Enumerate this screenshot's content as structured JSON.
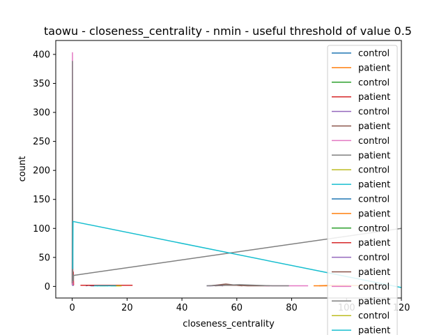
{
  "chart_data": {
    "type": "line",
    "title": "taowu - closeness_centrality - nmin - useful threshold of value 0.5",
    "xlabel": "closeness_centrality",
    "ylabel": "count",
    "xlim": [
      -6,
      120
    ],
    "ylim": [
      -20,
      424
    ],
    "xticks": [
      0,
      20,
      40,
      60,
      80,
      100,
      120
    ],
    "yticks": [
      0,
      50,
      100,
      150,
      200,
      250,
      300,
      350,
      400
    ],
    "xtick_labels": [
      "0",
      "20",
      "40",
      "60",
      "80",
      "100",
      "120"
    ],
    "ytick_labels": [
      "0",
      "50",
      "100",
      "150",
      "200",
      "250",
      "300",
      "350",
      "400"
    ],
    "grid": false,
    "legend_position": "right",
    "series": [
      {
        "name": "control",
        "color": "#1f77b4",
        "x": [
          0,
          0.1,
          0.2,
          0.3,
          0.4
        ],
        "y": [
          3,
          6,
          4,
          2,
          1
        ]
      },
      {
        "name": "patient",
        "color": "#ff7f0e",
        "x": [
          90,
          95,
          100,
          105,
          110
        ],
        "y": [
          1,
          2,
          2,
          1,
          1
        ]
      },
      {
        "name": "control",
        "color": "#2ca02c",
        "x": [
          0,
          0.1,
          0.2,
          0.3,
          0.4
        ],
        "y": [
          2,
          5,
          8,
          5,
          2
        ]
      },
      {
        "name": "patient",
        "color": "#d62728",
        "x": [
          0,
          0.1,
          0.2,
          0.3,
          0.4,
          0.5
        ],
        "y": [
          5,
          102,
          30,
          12,
          25,
          2
        ]
      },
      {
        "name": "control",
        "color": "#9467bd",
        "x": [
          0,
          0.1,
          0.2,
          0.3
        ],
        "y": [
          2,
          4,
          3,
          1
        ]
      },
      {
        "name": "patient",
        "color": "#8c564b",
        "x": [
          50,
          52,
          54,
          56,
          58,
          60,
          62
        ],
        "y": [
          1,
          2,
          3,
          4,
          3,
          2,
          1
        ]
      },
      {
        "name": "control",
        "color": "#e377c2",
        "x": [
          0,
          0.1,
          0.2,
          0.3
        ],
        "y": [
          3,
          403,
          10,
          3
        ]
      },
      {
        "name": "patient",
        "color": "#7f7f7f",
        "x": [
          0,
          0.1,
          0.2,
          0.4,
          0.5,
          120
        ],
        "y": [
          5,
          388,
          20,
          10,
          19,
          100
        ]
      },
      {
        "name": "control",
        "color": "#bcbd22",
        "x": [
          10,
          12,
          14,
          16,
          18
        ],
        "y": [
          1,
          1,
          2,
          1,
          1
        ]
      },
      {
        "name": "patient",
        "color": "#17becf",
        "x": [
          0.2,
          0.3,
          120
        ],
        "y": [
          30,
          112,
          -2
        ]
      },
      {
        "name": "control",
        "color": "#1f77b4",
        "x": [
          5,
          6,
          7,
          8
        ],
        "y": [
          1,
          2,
          1,
          1
        ]
      },
      {
        "name": "patient",
        "color": "#ff7f0e",
        "x": [
          88,
          92,
          96,
          100
        ],
        "y": [
          1,
          1,
          1,
          1
        ]
      },
      {
        "name": "control",
        "color": "#2ca02c",
        "x": [
          9,
          11,
          13
        ],
        "y": [
          1,
          2,
          1
        ]
      },
      {
        "name": "patient",
        "color": "#d62728",
        "x": [
          3,
          8,
          13,
          18,
          22
        ],
        "y": [
          2,
          2,
          2,
          2,
          2
        ]
      },
      {
        "name": "control",
        "color": "#9467bd",
        "x": [
          49,
          51,
          53,
          55
        ],
        "y": [
          1,
          1,
          2,
          1
        ]
      },
      {
        "name": "patient",
        "color": "#8c564b",
        "x": [
          52,
          56,
          60,
          64,
          68,
          72
        ],
        "y": [
          1,
          2,
          2,
          1,
          1,
          1
        ]
      },
      {
        "name": "control",
        "color": "#e377c2",
        "x": [
          70,
          74,
          78,
          82,
          86
        ],
        "y": [
          1,
          1,
          1,
          1,
          1
        ]
      },
      {
        "name": "patient",
        "color": "#7f7f7f",
        "x": [
          49,
          55,
          61,
          67,
          73,
          79
        ],
        "y": [
          1,
          2,
          3,
          2,
          1,
          1
        ]
      },
      {
        "name": "control",
        "color": "#bcbd22",
        "x": [
          14,
          16,
          18
        ],
        "y": [
          1,
          1,
          1
        ]
      },
      {
        "name": "patient",
        "color": "#17becf",
        "x": [
          8,
          10,
          12,
          14,
          16
        ],
        "y": [
          1,
          1,
          1,
          1,
          1
        ]
      }
    ]
  }
}
